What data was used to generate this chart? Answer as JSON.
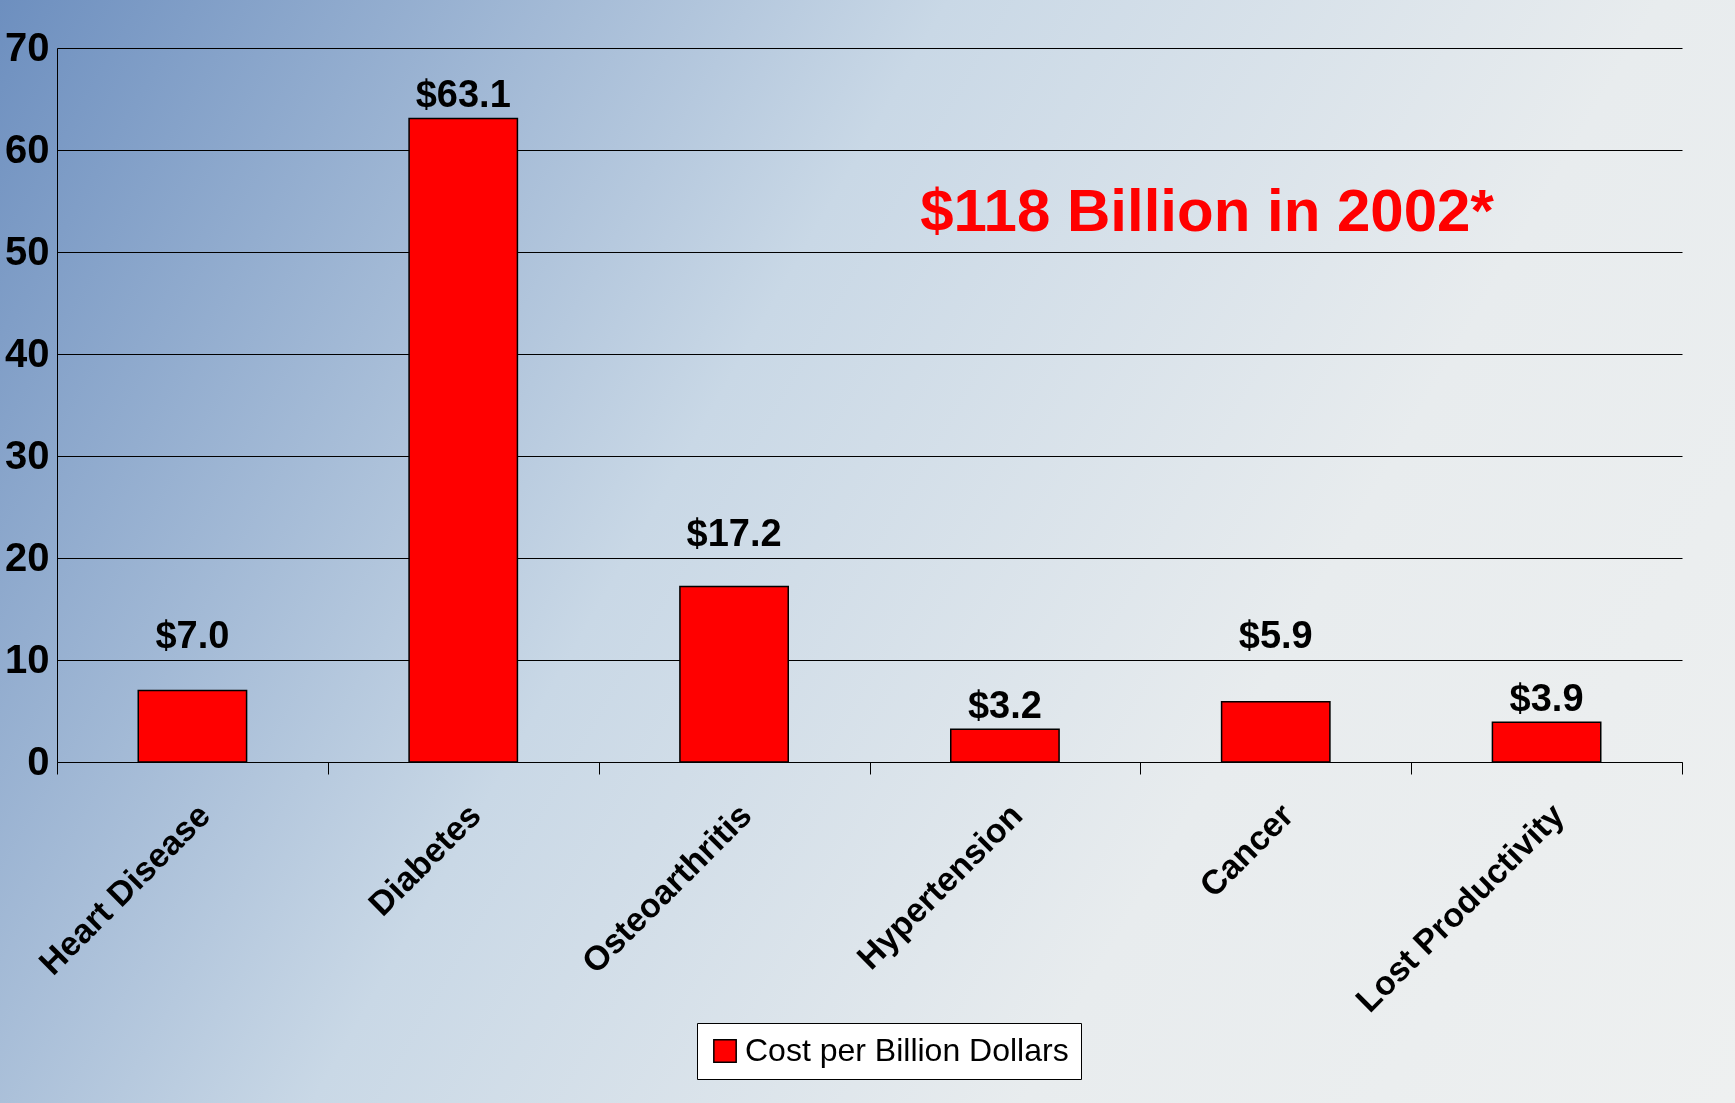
{
  "chart_data": {
    "type": "bar",
    "categories": [
      "Heart Disease",
      "Diabetes",
      "Osteoarthritis",
      "Hypertension",
      "Cancer",
      "Lost Productivity"
    ],
    "series": [
      {
        "name": "Cost per Billion Dollars",
        "color": "#ff0000",
        "values": [
          7.0,
          63.1,
          17.2,
          3.2,
          5.9,
          3.9
        ],
        "value_labels": [
          "$7.0",
          "$63.1",
          "$17.2",
          "$3.2",
          "$5.9",
          "$3.9"
        ]
      }
    ],
    "ylim": [
      0,
      70
    ],
    "yticks": [
      0,
      10,
      20,
      30,
      40,
      50,
      60,
      70
    ],
    "grid": "y",
    "legend": "bottom",
    "annotations": [
      "$118 Billion in 2002*"
    ]
  }
}
